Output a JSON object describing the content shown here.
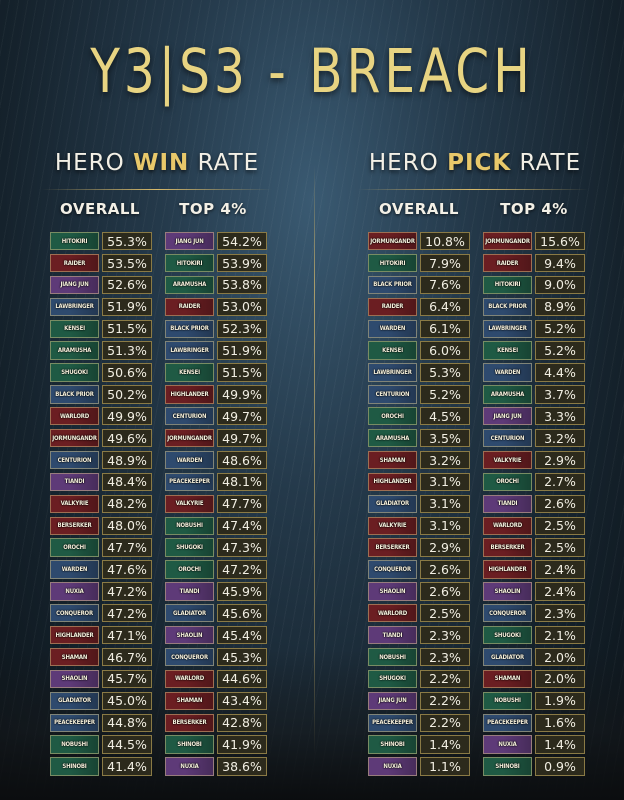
{
  "title": "Y3|S3 - BREACH",
  "win_rate": {
    "heading_pre": "HERO ",
    "heading_accent": "WIN",
    "heading_post": " RATE",
    "overall_label": "OVERALL",
    "top_label": "TOP 4%",
    "overall": [
      {
        "hero": "HITOKIRI",
        "faction": "samurai",
        "value": "55.3%"
      },
      {
        "hero": "RAIDER",
        "faction": "viking",
        "value": "53.5%"
      },
      {
        "hero": "JIANG JUN",
        "faction": "wulin",
        "value": "52.6%"
      },
      {
        "hero": "LAWBRINGER",
        "faction": "knight",
        "value": "51.9%"
      },
      {
        "hero": "KENSEI",
        "faction": "samurai",
        "value": "51.5%"
      },
      {
        "hero": "ARAMUSHA",
        "faction": "samurai",
        "value": "51.3%"
      },
      {
        "hero": "SHUGOKI",
        "faction": "samurai",
        "value": "50.6%"
      },
      {
        "hero": "BLACK PRIOR",
        "faction": "knight",
        "value": "50.2%"
      },
      {
        "hero": "WARLORD",
        "faction": "viking",
        "value": "49.9%"
      },
      {
        "hero": "JORMUNGANDR",
        "faction": "viking",
        "value": "49.6%"
      },
      {
        "hero": "CENTURION",
        "faction": "knight",
        "value": "48.9%"
      },
      {
        "hero": "TIANDI",
        "faction": "wulin",
        "value": "48.4%"
      },
      {
        "hero": "VALKYRIE",
        "faction": "viking",
        "value": "48.2%"
      },
      {
        "hero": "BERSERKER",
        "faction": "viking",
        "value": "48.0%"
      },
      {
        "hero": "OROCHI",
        "faction": "samurai",
        "value": "47.7%"
      },
      {
        "hero": "WARDEN",
        "faction": "knight",
        "value": "47.6%"
      },
      {
        "hero": "NUXIA",
        "faction": "wulin",
        "value": "47.2%"
      },
      {
        "hero": "CONQUEROR",
        "faction": "knight",
        "value": "47.2%"
      },
      {
        "hero": "HIGHLANDER",
        "faction": "viking",
        "value": "47.1%"
      },
      {
        "hero": "SHAMAN",
        "faction": "viking",
        "value": "46.7%"
      },
      {
        "hero": "SHAOLIN",
        "faction": "wulin",
        "value": "45.7%"
      },
      {
        "hero": "GLADIATOR",
        "faction": "knight",
        "value": "45.0%"
      },
      {
        "hero": "PEACEKEEPER",
        "faction": "knight",
        "value": "44.8%"
      },
      {
        "hero": "NOBUSHI",
        "faction": "samurai",
        "value": "44.5%"
      },
      {
        "hero": "SHINOBI",
        "faction": "samurai",
        "value": "41.4%"
      }
    ],
    "top": [
      {
        "hero": "JIANG JUN",
        "faction": "wulin",
        "value": "54.2%"
      },
      {
        "hero": "HITOKIRI",
        "faction": "samurai",
        "value": "53.9%"
      },
      {
        "hero": "ARAMUSHA",
        "faction": "samurai",
        "value": "53.8%"
      },
      {
        "hero": "RAIDER",
        "faction": "viking",
        "value": "53.0%"
      },
      {
        "hero": "BLACK PRIOR",
        "faction": "knight",
        "value": "52.3%"
      },
      {
        "hero": "LAWBRINGER",
        "faction": "knight",
        "value": "51.9%"
      },
      {
        "hero": "KENSEI",
        "faction": "samurai",
        "value": "51.5%"
      },
      {
        "hero": "HIGHLANDER",
        "faction": "viking",
        "value": "49.9%"
      },
      {
        "hero": "CENTURION",
        "faction": "knight",
        "value": "49.7%"
      },
      {
        "hero": "JORMUNGANDR",
        "faction": "viking",
        "value": "49.7%"
      },
      {
        "hero": "WARDEN",
        "faction": "knight",
        "value": "48.6%"
      },
      {
        "hero": "PEACEKEEPER",
        "faction": "knight",
        "value": "48.1%"
      },
      {
        "hero": "VALKYRIE",
        "faction": "viking",
        "value": "47.7%"
      },
      {
        "hero": "NOBUSHI",
        "faction": "samurai",
        "value": "47.4%"
      },
      {
        "hero": "SHUGOKI",
        "faction": "samurai",
        "value": "47.3%"
      },
      {
        "hero": "OROCHI",
        "faction": "samurai",
        "value": "47.2%"
      },
      {
        "hero": "TIANDI",
        "faction": "wulin",
        "value": "45.9%"
      },
      {
        "hero": "GLADIATOR",
        "faction": "knight",
        "value": "45.6%"
      },
      {
        "hero": "SHAOLIN",
        "faction": "wulin",
        "value": "45.4%"
      },
      {
        "hero": "CONQUEROR",
        "faction": "knight",
        "value": "45.3%"
      },
      {
        "hero": "WARLORD",
        "faction": "viking",
        "value": "44.6%"
      },
      {
        "hero": "SHAMAN",
        "faction": "viking",
        "value": "43.4%"
      },
      {
        "hero": "BERSERKER",
        "faction": "viking",
        "value": "42.8%"
      },
      {
        "hero": "SHINOBI",
        "faction": "samurai",
        "value": "41.9%"
      },
      {
        "hero": "NUXIA",
        "faction": "wulin",
        "value": "38.6%"
      }
    ]
  },
  "pick_rate": {
    "heading_pre": "HERO ",
    "heading_accent": "PICK",
    "heading_post": " RATE",
    "overall_label": "OVERALL",
    "top_label": "TOP 4%",
    "overall": [
      {
        "hero": "JORMUNGANDR",
        "faction": "viking",
        "value": "10.8%"
      },
      {
        "hero": "HITOKIRI",
        "faction": "samurai",
        "value": "7.9%"
      },
      {
        "hero": "BLACK PRIOR",
        "faction": "knight",
        "value": "7.6%"
      },
      {
        "hero": "RAIDER",
        "faction": "viking",
        "value": "6.4%"
      },
      {
        "hero": "WARDEN",
        "faction": "knight",
        "value": "6.1%"
      },
      {
        "hero": "KENSEI",
        "faction": "samurai",
        "value": "6.0%"
      },
      {
        "hero": "LAWBRINGER",
        "faction": "knight",
        "value": "5.3%"
      },
      {
        "hero": "CENTURION",
        "faction": "knight",
        "value": "5.2%"
      },
      {
        "hero": "OROCHI",
        "faction": "samurai",
        "value": "4.5%"
      },
      {
        "hero": "ARAMUSHA",
        "faction": "samurai",
        "value": "3.5%"
      },
      {
        "hero": "SHAMAN",
        "faction": "viking",
        "value": "3.2%"
      },
      {
        "hero": "HIGHLANDER",
        "faction": "viking",
        "value": "3.1%"
      },
      {
        "hero": "GLADIATOR",
        "faction": "knight",
        "value": "3.1%"
      },
      {
        "hero": "VALKYRIE",
        "faction": "viking",
        "value": "3.1%"
      },
      {
        "hero": "BERSERKER",
        "faction": "viking",
        "value": "2.9%"
      },
      {
        "hero": "CONQUEROR",
        "faction": "knight",
        "value": "2.6%"
      },
      {
        "hero": "SHAOLIN",
        "faction": "wulin",
        "value": "2.6%"
      },
      {
        "hero": "WARLORD",
        "faction": "viking",
        "value": "2.5%"
      },
      {
        "hero": "TIANDI",
        "faction": "wulin",
        "value": "2.3%"
      },
      {
        "hero": "NOBUSHI",
        "faction": "samurai",
        "value": "2.3%"
      },
      {
        "hero": "SHUGOKI",
        "faction": "samurai",
        "value": "2.2%"
      },
      {
        "hero": "JIANG JUN",
        "faction": "wulin",
        "value": "2.2%"
      },
      {
        "hero": "PEACEKEEPER",
        "faction": "knight",
        "value": "2.2%"
      },
      {
        "hero": "SHINOBI",
        "faction": "samurai",
        "value": "1.4%"
      },
      {
        "hero": "NUXIA",
        "faction": "wulin",
        "value": "1.1%"
      }
    ],
    "top": [
      {
        "hero": "JORMUNGANDR",
        "faction": "viking",
        "value": "15.6%"
      },
      {
        "hero": "RAIDER",
        "faction": "viking",
        "value": "9.4%"
      },
      {
        "hero": "HITOKIRI",
        "faction": "samurai",
        "value": "9.0%"
      },
      {
        "hero": "BLACK PRIOR",
        "faction": "knight",
        "value": "8.9%"
      },
      {
        "hero": "LAWBRINGER",
        "faction": "knight",
        "value": "5.2%"
      },
      {
        "hero": "KENSEI",
        "faction": "samurai",
        "value": "5.2%"
      },
      {
        "hero": "WARDEN",
        "faction": "knight",
        "value": "4.4%"
      },
      {
        "hero": "ARAMUSHA",
        "faction": "samurai",
        "value": "3.7%"
      },
      {
        "hero": "JIANG JUN",
        "faction": "wulin",
        "value": "3.3%"
      },
      {
        "hero": "CENTURION",
        "faction": "knight",
        "value": "3.2%"
      },
      {
        "hero": "VALKYRIE",
        "faction": "viking",
        "value": "2.9%"
      },
      {
        "hero": "OROCHI",
        "faction": "samurai",
        "value": "2.7%"
      },
      {
        "hero": "TIANDI",
        "faction": "wulin",
        "value": "2.6%"
      },
      {
        "hero": "WARLORD",
        "faction": "viking",
        "value": "2.5%"
      },
      {
        "hero": "BERSERKER",
        "faction": "viking",
        "value": "2.5%"
      },
      {
        "hero": "HIGHLANDER",
        "faction": "viking",
        "value": "2.4%"
      },
      {
        "hero": "SHAOLIN",
        "faction": "wulin",
        "value": "2.4%"
      },
      {
        "hero": "CONQUEROR",
        "faction": "knight",
        "value": "2.3%"
      },
      {
        "hero": "SHUGOKI",
        "faction": "samurai",
        "value": "2.1%"
      },
      {
        "hero": "GLADIATOR",
        "faction": "knight",
        "value": "2.0%"
      },
      {
        "hero": "SHAMAN",
        "faction": "viking",
        "value": "2.0%"
      },
      {
        "hero": "NOBUSHI",
        "faction": "samurai",
        "value": "1.9%"
      },
      {
        "hero": "PEACEKEEPER",
        "faction": "knight",
        "value": "1.6%"
      },
      {
        "hero": "NUXIA",
        "faction": "wulin",
        "value": "1.4%"
      },
      {
        "hero": "SHINOBI",
        "faction": "samurai",
        "value": "0.9%"
      }
    ]
  },
  "colors": {
    "title": "#e8d482",
    "accent": "#e8c86a",
    "cell_bg": "#2c2a1c",
    "cell_border": "#8a7a45",
    "faction_knight": "#2e4a6e",
    "faction_viking": "#6b1e22",
    "faction_samurai": "#1f5a44",
    "faction_wulin": "#5e3a78"
  }
}
